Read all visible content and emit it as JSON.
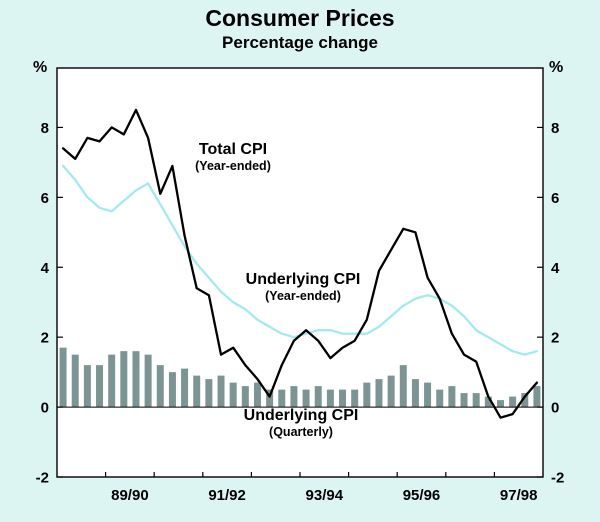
{
  "chart_data": {
    "type": "line+bar",
    "title": "Consumer Prices",
    "subtitle": "Percentage change",
    "y_unit": "%",
    "frequency": "quarterly",
    "x_start_quarter": "Sep-1988",
    "x_end_quarter": "Jun-1998",
    "x_tick_labels": [
      "89/90",
      "91/92",
      "93/94",
      "95/96",
      "97/98"
    ],
    "x_tick_label_boundaries": [
      6,
      14,
      22,
      30,
      38
    ],
    "x_minor_tick_boundaries": [
      4,
      8,
      12,
      16,
      20,
      24,
      28,
      32,
      36
    ],
    "y_tick_labels": [
      "8",
      "6",
      "4",
      "2",
      "0",
      "-2"
    ],
    "y_tick_values": [
      8,
      6,
      4,
      2,
      0,
      -2
    ],
    "ylim": [
      -2,
      9.7
    ],
    "grid": false,
    "legend": "in-plot annotations",
    "series": [
      {
        "name": "Total CPI (Year-ended)",
        "type": "line",
        "color": "#000000",
        "values": [
          7.4,
          7.1,
          7.7,
          7.6,
          8.0,
          7.8,
          8.5,
          7.7,
          6.1,
          6.9,
          4.9,
          3.4,
          3.2,
          1.5,
          1.7,
          1.2,
          0.8,
          0.3,
          1.2,
          1.9,
          2.2,
          1.9,
          1.4,
          1.7,
          1.9,
          2.5,
          3.9,
          4.5,
          5.1,
          5.0,
          3.7,
          3.1,
          2.1,
          1.5,
          1.3,
          0.3,
          -0.3,
          -0.2,
          0.3,
          0.7
        ]
      },
      {
        "name": "Underlying CPI (Year-ended)",
        "type": "line",
        "color": "#a3e9ef",
        "values": [
          6.9,
          6.5,
          6.0,
          5.7,
          5.6,
          5.9,
          6.2,
          6.4,
          5.8,
          5.2,
          4.6,
          4.1,
          3.7,
          3.3,
          3.0,
          2.8,
          2.5,
          2.3,
          2.1,
          2.0,
          2.1,
          2.2,
          2.2,
          2.1,
          2.1,
          2.1,
          2.3,
          2.6,
          2.9,
          3.1,
          3.2,
          3.1,
          2.9,
          2.6,
          2.2,
          2.0,
          1.8,
          1.6,
          1.5,
          1.6
        ]
      },
      {
        "name": "Underlying CPI (Quarterly)",
        "type": "bar",
        "color": "#7d9495",
        "values": [
          1.7,
          1.5,
          1.2,
          1.2,
          1.5,
          1.6,
          1.6,
          1.5,
          1.2,
          1.0,
          1.1,
          0.9,
          0.8,
          0.9,
          0.7,
          0.6,
          0.7,
          0.5,
          0.5,
          0.6,
          0.5,
          0.6,
          0.5,
          0.5,
          0.5,
          0.7,
          0.8,
          0.9,
          1.2,
          0.8,
          0.7,
          0.5,
          0.6,
          0.4,
          0.4,
          0.3,
          0.2,
          0.3,
          0.4,
          0.6
        ]
      }
    ],
    "annotations": [
      {
        "label": "Total CPI",
        "sublabel": "(Year-ended)"
      },
      {
        "label": "Underlying CPI",
        "sublabel": "(Year-ended)"
      },
      {
        "label": "Underlying CPI",
        "sublabel": "(Quarterly)"
      }
    ],
    "colors": {
      "background": "#dcf5f3",
      "plot_background": "#ffffff",
      "axis": "#000000"
    }
  }
}
